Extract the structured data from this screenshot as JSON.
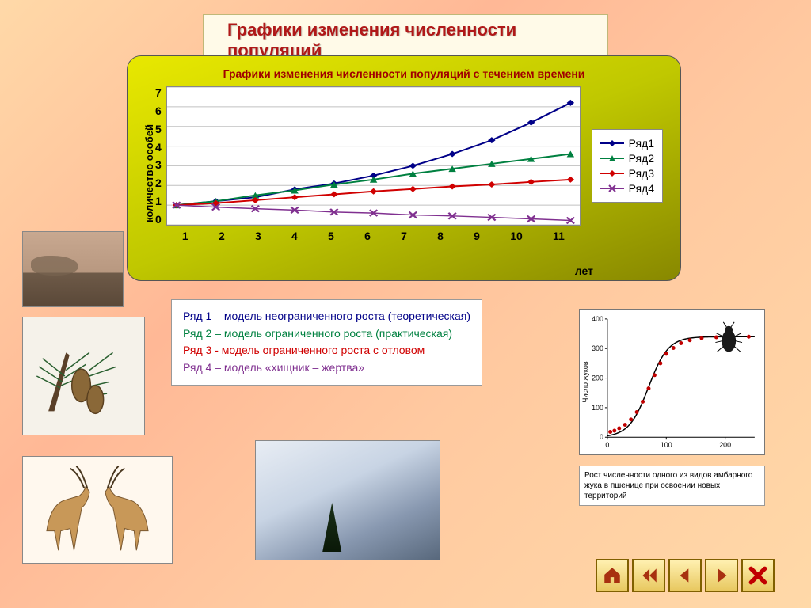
{
  "title": "Графики изменения численности популяций",
  "chart": {
    "subtitle": "Графики изменения численности популяций с течением времени",
    "type": "line",
    "y_label": "количество особей",
    "x_label": "лет",
    "y_ticks": [
      7,
      6,
      5,
      4,
      3,
      2,
      1,
      0
    ],
    "x_ticks": [
      1,
      2,
      3,
      4,
      5,
      6,
      7,
      8,
      9,
      10,
      11
    ],
    "xlim": [
      1,
      11
    ],
    "ylim": [
      0,
      7
    ],
    "background_color": "#ffffff",
    "grid_color": "#c0c0c0",
    "label_fontsize": 14,
    "series": [
      {
        "name": "Ряд1",
        "color": "#000088",
        "marker": "diamond",
        "line_width": 2,
        "y": [
          1.0,
          1.2,
          1.4,
          1.8,
          2.1,
          2.5,
          3.0,
          3.6,
          4.3,
          5.2,
          6.2
        ]
      },
      {
        "name": "Ряд2",
        "color": "#008040",
        "marker": "triangle",
        "line_width": 2,
        "y": [
          1.0,
          1.2,
          1.5,
          1.75,
          2.05,
          2.3,
          2.6,
          2.85,
          3.1,
          3.35,
          3.6
        ]
      },
      {
        "name": "Ряд3",
        "color": "#d00000",
        "marker": "diamond",
        "line_width": 2,
        "y": [
          1.0,
          1.1,
          1.25,
          1.4,
          1.55,
          1.7,
          1.82,
          1.95,
          2.05,
          2.18,
          2.3
        ]
      },
      {
        "name": "Ряд4",
        "color": "#803090",
        "marker": "x",
        "line_width": 1.5,
        "y": [
          1.0,
          0.9,
          0.82,
          0.75,
          0.65,
          0.6,
          0.5,
          0.45,
          0.38,
          0.3,
          0.22
        ]
      }
    ]
  },
  "descriptions": [
    {
      "color": "#000088",
      "label": "Ряд 1 –",
      "text": "модель неограниченного роста (теоретическая)"
    },
    {
      "color": "#008040",
      "label": "Ряд 2 –",
      "text": "модель ограниченного роста (практическая)"
    },
    {
      "color": "#d00000",
      "label": "Ряд 3 - ",
      "text": "модель ограниченного роста с отловом"
    },
    {
      "color": "#803090",
      "label": "Ряд 4 –",
      "text": "модель «хищник – жертва»"
    }
  ],
  "mini_chart": {
    "type": "logistic",
    "y_label": "Число жуков",
    "ylim": [
      0,
      400
    ],
    "xlim": [
      0,
      250
    ],
    "y_ticks": [
      0,
      100,
      200,
      300,
      400
    ],
    "x_ticks": [
      0,
      100,
      200
    ],
    "curve_color": "#000000",
    "point_color": "#c00000",
    "points": [
      [
        5,
        18
      ],
      [
        12,
        22
      ],
      [
        20,
        30
      ],
      [
        30,
        42
      ],
      [
        40,
        60
      ],
      [
        50,
        85
      ],
      [
        60,
        120
      ],
      [
        70,
        165
      ],
      [
        80,
        210
      ],
      [
        90,
        250
      ],
      [
        100,
        282
      ],
      [
        112,
        302
      ],
      [
        125,
        318
      ],
      [
        140,
        328
      ],
      [
        160,
        335
      ],
      [
        185,
        338
      ],
      [
        210,
        340
      ],
      [
        240,
        340
      ]
    ],
    "asymptote": 340,
    "caption": "Рост численности одного из видов амбарного жука в пшенице при освоении новых территорий"
  },
  "nav": {
    "home": "home-icon",
    "first": "first-icon",
    "prev": "prev-icon",
    "next": "next-icon",
    "close": "close-icon"
  },
  "colors": {
    "title_bg": "#fffae8",
    "title_text": "#b01818",
    "panel_gradient_top": "#e8e800",
    "panel_gradient_bottom": "#888800",
    "nav_border": "#806000",
    "nav_arrow": "#a83010",
    "nav_close": "#c00000"
  }
}
